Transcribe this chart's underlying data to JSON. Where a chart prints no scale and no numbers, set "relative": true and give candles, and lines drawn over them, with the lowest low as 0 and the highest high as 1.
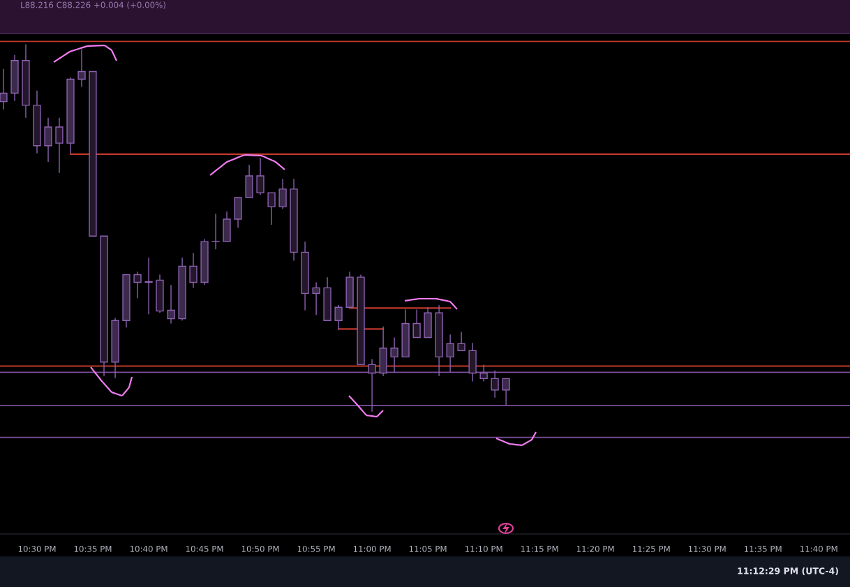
{
  "chart_data": {
    "type": "candlestick",
    "relative": true,
    "tick_labels": "x",
    "grid": false,
    "color": "#8c62b0",
    "x": [
      22.45,
      22.4667,
      22.4833,
      22.5,
      22.5167,
      22.5333,
      22.55,
      22.5667,
      22.5833,
      22.6,
      22.6167,
      22.6333,
      22.65,
      22.6667,
      22.6833,
      22.7,
      22.7167,
      22.7333,
      22.75,
      22.7667,
      22.7833,
      22.8,
      22.8167,
      22.8333,
      22.85,
      22.8667,
      22.8833,
      22.9,
      22.9167,
      22.9333,
      22.95,
      22.9667,
      22.9833,
      23.0,
      23.0167,
      23.0333,
      23.05,
      23.0667,
      23.0833,
      23.1,
      23.1167,
      23.1333,
      23.15,
      23.1667,
      23.1833,
      23.2
    ],
    "ohlc": [
      [
        0.844,
        0.933,
        0.823,
        0.867
      ],
      [
        0.867,
        0.971,
        0.846,
        0.956
      ],
      [
        0.956,
        1.0,
        0.8,
        0.834
      ],
      [
        0.834,
        0.874,
        0.703,
        0.724
      ],
      [
        0.724,
        0.8,
        0.68,
        0.775
      ],
      [
        0.775,
        0.8,
        0.65,
        0.731
      ],
      [
        0.731,
        0.91,
        0.703,
        0.905
      ],
      [
        0.905,
        0.987,
        0.884,
        0.926
      ],
      [
        0.926,
        0.926,
        0.478,
        0.478
      ],
      [
        0.478,
        0.478,
        0.097,
        0.135
      ],
      [
        0.135,
        0.255,
        0.091,
        0.248
      ],
      [
        0.248,
        0.373,
        0.229,
        0.373
      ],
      [
        0.373,
        0.381,
        0.309,
        0.352
      ],
      [
        0.354,
        0.419,
        0.265,
        0.352
      ],
      [
        0.358,
        0.373,
        0.269,
        0.274
      ],
      [
        0.253,
        0.345,
        0.24,
        0.276
      ],
      [
        0.253,
        0.419,
        0.248,
        0.396
      ],
      [
        0.396,
        0.432,
        0.337,
        0.352
      ],
      [
        0.352,
        0.47,
        0.345,
        0.463
      ],
      [
        0.463,
        0.539,
        0.442,
        0.463
      ],
      [
        0.463,
        0.545,
        0.463,
        0.524
      ],
      [
        0.524,
        0.583,
        0.501,
        0.583
      ],
      [
        0.583,
        0.672,
        0.583,
        0.642
      ],
      [
        0.642,
        0.691,
        0.59,
        0.596
      ],
      [
        0.596,
        0.596,
        0.509,
        0.558
      ],
      [
        0.558,
        0.634,
        0.552,
        0.606
      ],
      [
        0.606,
        0.634,
        0.411,
        0.434
      ],
      [
        0.434,
        0.463,
        0.276,
        0.322
      ],
      [
        0.322,
        0.352,
        0.263,
        0.337
      ],
      [
        0.337,
        0.366,
        0.248,
        0.248
      ],
      [
        0.248,
        0.291,
        0.223,
        0.284
      ],
      [
        0.284,
        0.381,
        0.284,
        0.366
      ],
      [
        0.366,
        0.373,
        0.128,
        0.128
      ],
      [
        0.128,
        0.143,
        0.0,
        0.105
      ],
      [
        0.105,
        0.232,
        0.097,
        0.173
      ],
      [
        0.149,
        0.202,
        0.107,
        0.173
      ],
      [
        0.149,
        0.278,
        0.149,
        0.24
      ],
      [
        0.24,
        0.278,
        0.202,
        0.202
      ],
      [
        0.202,
        0.284,
        0.202,
        0.269
      ],
      [
        0.269,
        0.29,
        0.097,
        0.149
      ],
      [
        0.149,
        0.21,
        0.107,
        0.185
      ],
      [
        0.185,
        0.217,
        0.166,
        0.166
      ],
      [
        0.166,
        0.187,
        0.082,
        0.105
      ],
      [
        0.105,
        0.128,
        0.082,
        0.09
      ],
      [
        0.09,
        0.112,
        0.038,
        0.059
      ],
      [
        0.059,
        0.09,
        0.017,
        0.09
      ]
    ],
    "colors": [
      "#3c2a4c",
      "#3c2a4c",
      "#24172b",
      "#24172b",
      "#3c2a4c",
      "#24172b",
      "#3c2a4c",
      "#3c2a4c",
      "#24172b",
      "#24172b",
      "#3c2a4c",
      "#3c2a4c",
      "#24172b",
      "#24172b",
      "#24172b",
      "#3c2a4c",
      "#3c2a4c",
      "#24172b",
      "#3c2a4c",
      "#3c2a4c",
      "#3c2a4c",
      "#3c2a4c",
      "#3c2a4c",
      "#24172b",
      "#24172b",
      "#3c2a4c",
      "#24172b",
      "#24172b",
      "#3c2a4c",
      "#24172b",
      "#3c2a4c",
      "#3c2a4c",
      "#24172b",
      "#24172b",
      "#3c2a4c",
      "#3c2a4c",
      "#3c2a4c",
      "#24172b",
      "#3c2a4c",
      "#24172b",
      "#3c2a4c",
      "#24172b",
      "#24172b",
      "#24172b",
      "#24172b",
      "#3c2a4c"
    ],
    "series": [
      {
        "type": "line",
        "color": "#c0392b",
        "x": [
          22.55,
          23.7133
        ],
        "values": [
          0.701,
          0.701
        ]
      },
      {
        "type": "line",
        "color": "#c0392b",
        "x": [
          22.9667,
          23.1167
        ],
        "values": [
          0.282,
          0.282
        ]
      },
      {
        "type": "line",
        "color": "#c0392b",
        "x": [
          22.95,
          23.0167
        ],
        "values": [
          0.225,
          0.225
        ]
      }
    ],
    "ref_lines": [
      {
        "axis": "y",
        "value": 1.008,
        "color": "#c0392b"
      },
      {
        "axis": "y",
        "value": 0.124,
        "color": "#c0392b"
      },
      {
        "axis": "y",
        "value": 0.107,
        "color": "#7d4e9c"
      },
      {
        "axis": "y",
        "value": 0.017,
        "color": "#7d4e9c"
      },
      {
        "axis": "y",
        "value": -0.07,
        "color": "#7d4e9c"
      }
    ],
    "xlim": [
      22.4448,
      23.7133
    ],
    "xticks": [
      {
        "value": 22.5,
        "label": "10:30 PM"
      },
      {
        "value": 22.5833,
        "label": "10:35 PM"
      },
      {
        "value": 22.6667,
        "label": "10:40 PM"
      },
      {
        "value": 22.75,
        "label": "10:45 PM"
      },
      {
        "value": 22.8333,
        "label": "10:50 PM"
      },
      {
        "value": 22.9167,
        "label": "10:55 PM"
      },
      {
        "value": 23.0,
        "label": "11:00 PM"
      },
      {
        "value": 23.0833,
        "label": "11:05 PM"
      },
      {
        "value": 23.1667,
        "label": "11:10 PM"
      },
      {
        "value": 23.25,
        "label": "11:15 PM"
      },
      {
        "value": 23.3333,
        "label": "11:20 PM"
      },
      {
        "value": 23.4167,
        "label": "11:25 PM"
      },
      {
        "value": 23.5,
        "label": "11:30 PM"
      },
      {
        "value": 23.5833,
        "label": "11:35 PM"
      },
      {
        "value": 23.6667,
        "label": "11:40 PM"
      }
    ],
    "annotations": [
      "L88.216 C88.226 +0.004 (+0.00%)",
      "11:12:29 PM (UTC-4)"
    ]
  }
}
